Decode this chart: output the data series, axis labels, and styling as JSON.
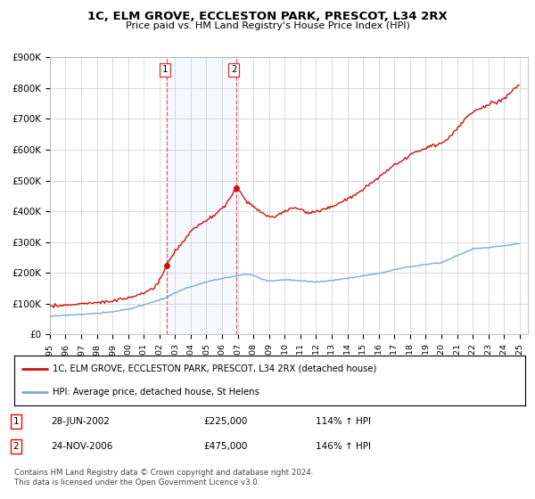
{
  "title": "1C, ELM GROVE, ECCLESTON PARK, PRESCOT, L34 2RX",
  "subtitle": "Price paid vs. HM Land Registry's House Price Index (HPI)",
  "ylim": [
    0,
    900000
  ],
  "yticks": [
    0,
    100000,
    200000,
    300000,
    400000,
    500000,
    600000,
    700000,
    800000,
    900000
  ],
  "ytick_labels": [
    "£0",
    "£100K",
    "£200K",
    "£300K",
    "£400K",
    "£500K",
    "£600K",
    "£700K",
    "£800K",
    "£900K"
  ],
  "background_color": "#ffffff",
  "plot_bg_color": "#ffffff",
  "grid_color": "#cccccc",
  "legend_line1": "1C, ELM GROVE, ECCLESTON PARK, PRESCOT, L34 2RX (detached house)",
  "legend_line2": "HPI: Average price, detached house, St Helens",
  "annotation1_label": "1",
  "annotation1_date": "28-JUN-2002",
  "annotation1_price": "£225,000",
  "annotation1_hpi": "114% ↑ HPI",
  "annotation2_label": "2",
  "annotation2_date": "24-NOV-2006",
  "annotation2_price": "£475,000",
  "annotation2_hpi": "146% ↑ HPI",
  "footer": "Contains HM Land Registry data © Crown copyright and database right 2024.\nThis data is licensed under the Open Government Licence v3.0.",
  "hpi_color": "#7aabdb",
  "price_color": "#cc1111",
  "sale1_x": 2002.49,
  "sale1_y": 225000,
  "sale2_x": 2006.9,
  "sale2_y": 475000,
  "shade_x1": 2002.49,
  "shade_x2": 2006.9,
  "xtick_years": [
    1995,
    1996,
    1997,
    1998,
    1999,
    2000,
    2001,
    2002,
    2003,
    2004,
    2005,
    2006,
    2007,
    2008,
    2009,
    2010,
    2011,
    2012,
    2013,
    2014,
    2015,
    2016,
    2017,
    2018,
    2019,
    2020,
    2021,
    2022,
    2023,
    2024,
    2025
  ]
}
